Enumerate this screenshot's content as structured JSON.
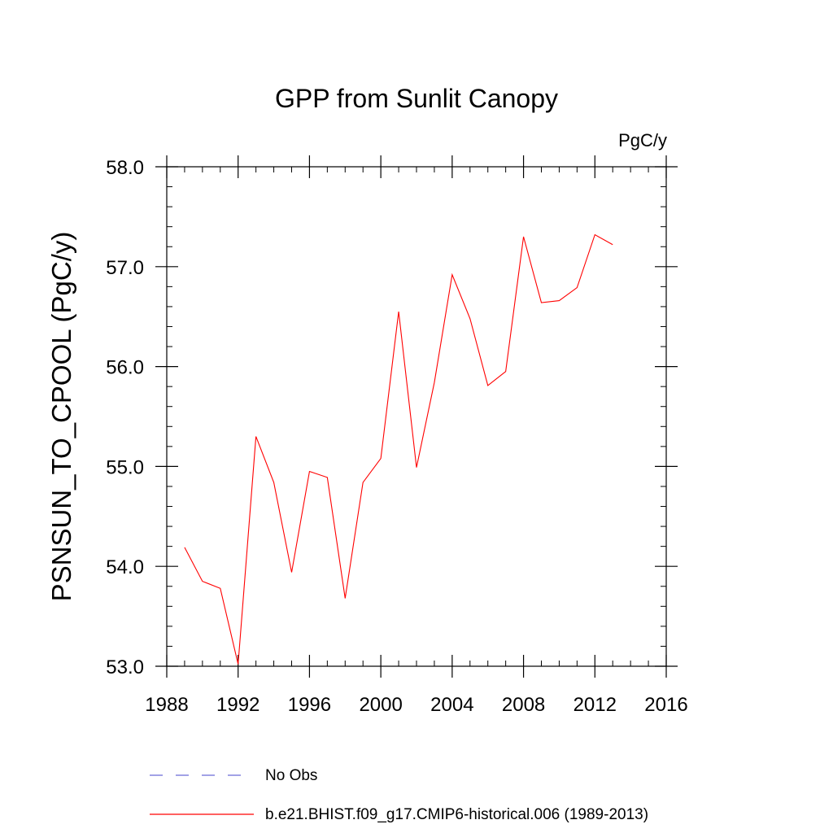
{
  "chart_data": {
    "type": "line",
    "title": "GPP from Sunlit Canopy",
    "units": "PgC/y",
    "ylabel": "PSNSUN_TO_CPOOL  (PgC/y)",
    "xlabel": "",
    "xlim": [
      1988,
      2016
    ],
    "ylim": [
      53.0,
      58.0
    ],
    "xticks": [
      1988,
      1992,
      1996,
      2000,
      2004,
      2008,
      2012,
      2016
    ],
    "xtick_labels": [
      "1988",
      "1992",
      "1996",
      "2000",
      "2004",
      "2008",
      "2012",
      "2016"
    ],
    "yticks": [
      53.0,
      54.0,
      55.0,
      56.0,
      57.0,
      58.0
    ],
    "ytick_labels": [
      "53.0",
      "54.0",
      "55.0",
      "56.0",
      "57.0",
      "58.0"
    ],
    "grid": false,
    "legend_position": "bottom",
    "series": [
      {
        "name": "b.e21.BHIST.f09_g17.CMIP6-historical.006 (1989-2013)",
        "color": "#ff0000",
        "style": "solid",
        "x": [
          1989,
          1990,
          1991,
          1992,
          1993,
          1994,
          1995,
          1996,
          1997,
          1998,
          1999,
          2000,
          2001,
          2002,
          2003,
          2004,
          2005,
          2006,
          2007,
          2008,
          2009,
          2010,
          2011,
          2012,
          2013
        ],
        "y": [
          54.19,
          53.85,
          53.78,
          53.02,
          55.3,
          54.84,
          53.94,
          54.95,
          54.89,
          53.68,
          54.84,
          55.08,
          56.55,
          54.99,
          55.84,
          56.92,
          56.48,
          55.81,
          55.95,
          57.3,
          56.64,
          56.66,
          56.79,
          57.32,
          57.22
        ]
      }
    ],
    "legend": [
      {
        "label": "No Obs",
        "color": "#6b6bd6",
        "style": "dashed"
      },
      {
        "label": "b.e21.BHIST.f09_g17.CMIP6-historical.006 (1989-2013)",
        "color": "#ff0000",
        "style": "solid"
      }
    ]
  }
}
